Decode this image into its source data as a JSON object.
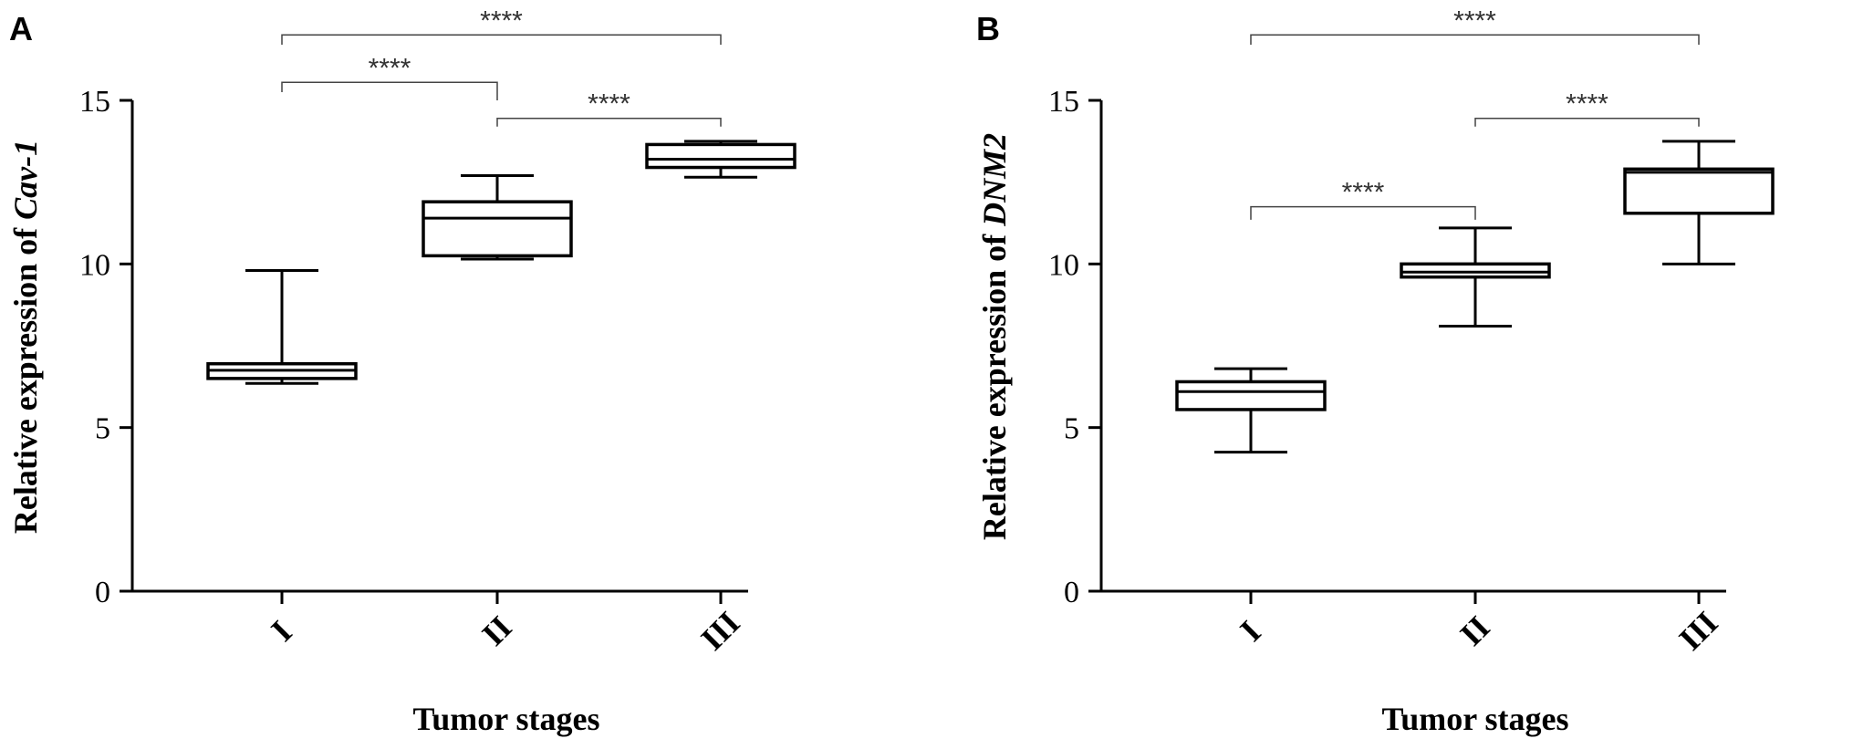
{
  "chart_data": [
    {
      "type": "box",
      "panel": "A",
      "xlabel": "Tumor stages",
      "ylabel_prefix": "Relative expression of ",
      "ylabel_gene": "Cav-1",
      "ylim": [
        0,
        15
      ],
      "yticks": [
        "0",
        "5",
        "10",
        "15"
      ],
      "categories": [
        "I",
        "II",
        "III"
      ],
      "boxes": [
        {
          "category": "I",
          "min": 6.35,
          "q1": 6.5,
          "median": 6.75,
          "q3": 6.95,
          "max": 9.8
        },
        {
          "category": "II",
          "min": 10.15,
          "q1": 10.25,
          "median": 11.4,
          "q3": 11.9,
          "max": 12.7
        },
        {
          "category": "III",
          "min": 12.65,
          "q1": 12.95,
          "median": 13.2,
          "q3": 13.65,
          "max": 13.75
        }
      ],
      "significance": [
        {
          "from": "I",
          "to": "III",
          "label": "****",
          "y": 17.0,
          "left_drop": 16.7,
          "right_drop": 16.7
        },
        {
          "from": "I",
          "to": "II",
          "label": "****",
          "y": 15.55,
          "left_drop": 15.25,
          "right_drop": 15.0
        },
        {
          "from": "II",
          "to": "III",
          "label": "****",
          "y": 14.45,
          "left_drop": 14.2,
          "right_drop": 14.2
        }
      ]
    },
    {
      "type": "box",
      "panel": "B",
      "xlabel": "Tumor stages",
      "ylabel_prefix": "Relative expression of ",
      "ylabel_gene": "DNM2",
      "ylim": [
        0,
        15
      ],
      "yticks": [
        "0",
        "5",
        "10",
        "15"
      ],
      "categories": [
        "I",
        "II",
        "III"
      ],
      "boxes": [
        {
          "category": "I",
          "min": 4.25,
          "q1": 5.55,
          "median": 6.1,
          "q3": 6.4,
          "max": 6.8
        },
        {
          "category": "II",
          "min": 8.1,
          "q1": 9.6,
          "median": 9.75,
          "q3": 10.0,
          "max": 11.1
        },
        {
          "category": "III",
          "min": 10.0,
          "q1": 11.55,
          "median": 12.8,
          "q3": 12.9,
          "max": 13.75
        }
      ],
      "significance": [
        {
          "from": "I",
          "to": "III",
          "label": "****",
          "y": 17.0,
          "left_drop": 16.7,
          "right_drop": 16.7
        },
        {
          "from": "II",
          "to": "III",
          "label": "****",
          "y": 14.45,
          "left_drop": 14.2,
          "right_drop": 14.2
        },
        {
          "from": "I",
          "to": "II",
          "label": "****",
          "y": 11.75,
          "left_drop": 11.35,
          "right_drop": 11.35
        }
      ]
    }
  ]
}
